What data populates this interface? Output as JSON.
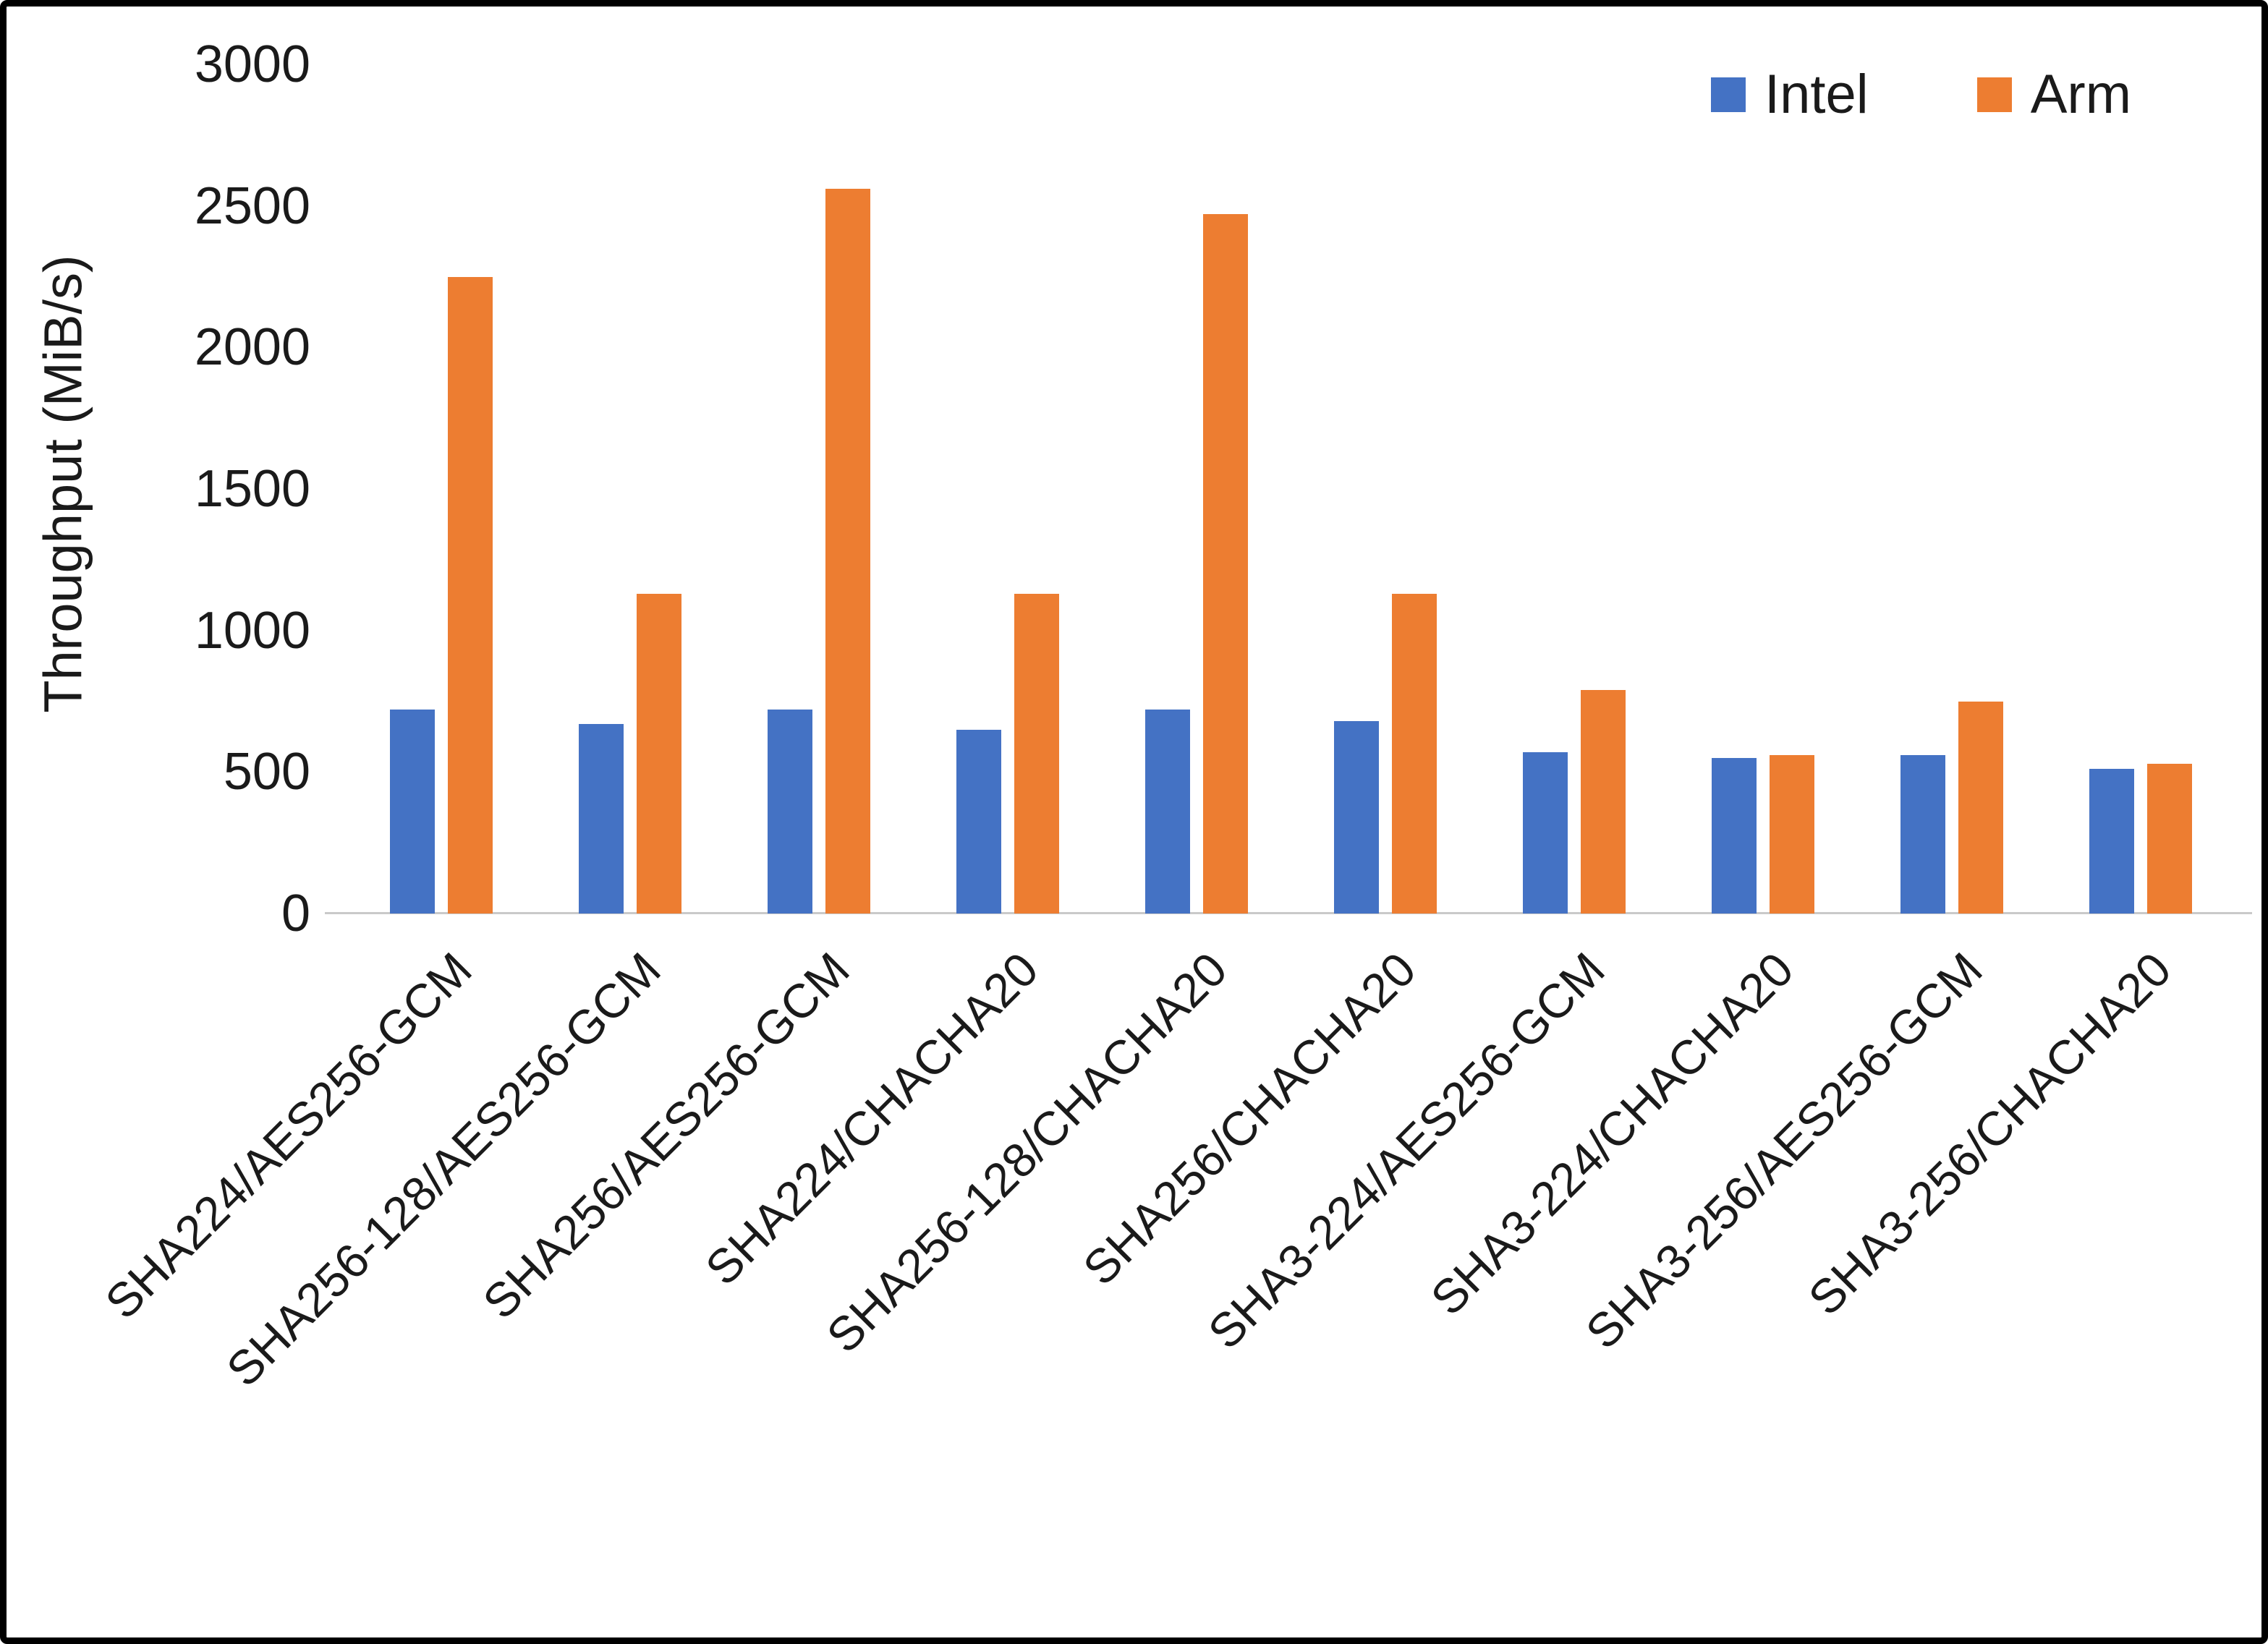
{
  "chart_data": {
    "type": "bar",
    "title": "",
    "xlabel": "",
    "ylabel": "Throughput (MiB/s)",
    "ylim": [
      0,
      3000
    ],
    "yticks": [
      0,
      500,
      1000,
      1500,
      2000,
      2500,
      3000
    ],
    "grid": false,
    "legend_position": "top-right",
    "categories": [
      "SHA224/AES256-GCM",
      "SHA256-128/AES256-GCM",
      "SHA256/AES256-GCM",
      "SHA224/CHACHA20",
      "SHA256-128/CHACHA20",
      "SHA256/CHACHA20",
      "SHA3-224/AES256-GCM",
      "SHA3-224/CHACHA20",
      "SHA3-256/AES256-GCM",
      "SHA3-256/CHACHA20"
    ],
    "series": [
      {
        "name": "Intel",
        "color": "#4472C4",
        "values": [
          720,
          670,
          720,
          650,
          720,
          680,
          570,
          550,
          560,
          510
        ]
      },
      {
        "name": "Arm",
        "color": "#ED7D31",
        "values": [
          2250,
          1130,
          2560,
          1130,
          2470,
          1130,
          790,
          560,
          750,
          530
        ]
      }
    ]
  }
}
